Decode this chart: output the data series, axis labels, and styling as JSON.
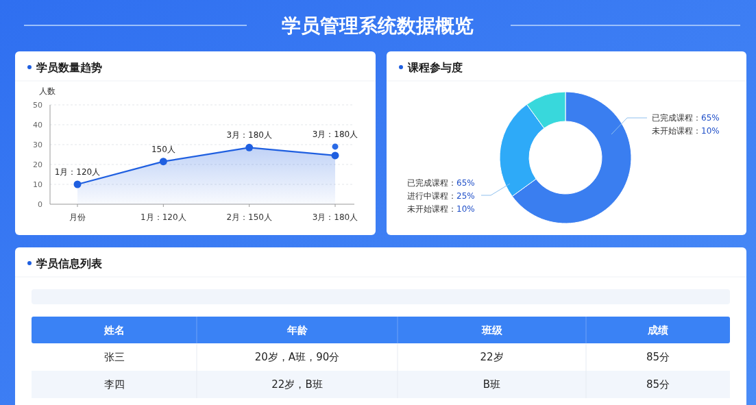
{
  "chart_data": [
    {
      "type": "area",
      "title": "学员管理系统数据概览",
      "subtitle": "学员数量趋势",
      "ylabel": "人数",
      "categories": [
        "月份",
        "1月：120人",
        "2月：150人",
        "3月：180人"
      ],
      "series": [
        {
          "type": "area",
          "color": "#1f5fe0",
          "values": [
            10,
            21.5,
            28.5,
            24.5
          ]
        },
        {
          "type": "scatter",
          "color": "#2a6ae6",
          "x": [
            "3月：180人"
          ],
          "values": [
            29
          ]
        }
      ],
      "ylim": [
        0,
        50
      ],
      "yticks": [
        0,
        10,
        20,
        30,
        40,
        50
      ],
      "grid": "y",
      "marker": "circle",
      "annotations": [
        {
          "text": "1月：120人",
          "x": "月份",
          "y": 10
        },
        {
          "text": "150人",
          "x": "1月：120人",
          "y": 21.5
        },
        {
          "text": "3月：180人",
          "x": "2月：150人",
          "y": 28.5
        },
        {
          "text": "3月：180人",
          "x": "3月：180人",
          "y": 29
        }
      ]
    },
    {
      "type": "donut",
      "title": "课程参与度",
      "categories": [
        null,
        null,
        null
      ],
      "values": [
        65,
        25,
        10
      ],
      "colors": [
        "#3a7ef0",
        "#2eaaf8",
        "#38d8dc"
      ],
      "annotations": [
        "已完成课程：65%",
        "未开始课程：10%",
        "已完成课程：65%",
        "进行中课程：25%",
        "未开始课程：10%"
      ]
    },
    {
      "type": "other",
      "title": "学员信息列表",
      "categories": [
        "姓名",
        "年龄",
        "班级",
        "成绩"
      ],
      "cell_labels": [
        [
          "张三",
          "20岁，A班，90分",
          "22岁",
          "85分"
        ],
        [
          "李四",
          "22岁，B班",
          "B班",
          "85分"
        ]
      ]
    }
  ]
}
